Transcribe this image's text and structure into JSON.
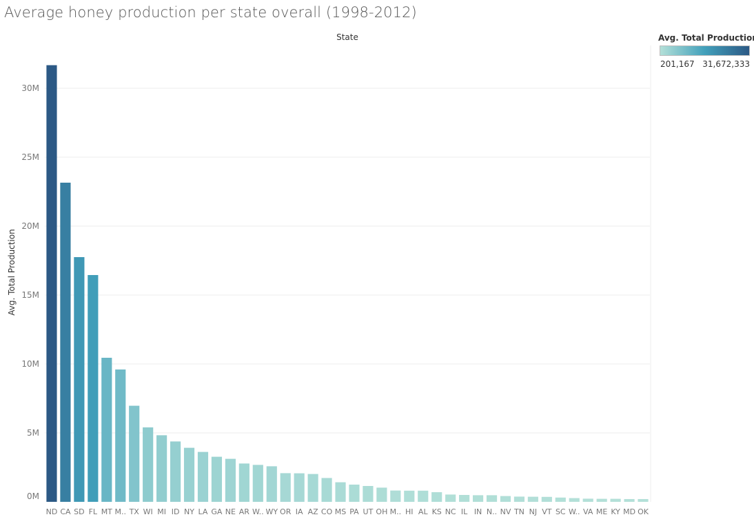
{
  "chart_data": {
    "type": "bar",
    "title": "Average honey production per state overall (1998-2012)",
    "xlabel": "State",
    "ylabel": "Avg. Total Production",
    "ylim": [
      0,
      32000000
    ],
    "yticks": [
      0,
      5000000,
      10000000,
      15000000,
      20000000,
      25000000,
      30000000
    ],
    "ytick_labels": [
      "0M",
      "5M",
      "10M",
      "15M",
      "20M",
      "25M",
      "30M"
    ],
    "categories": [
      "ND",
      "CA",
      "SD",
      "FL",
      "MT",
      "M..",
      "TX",
      "WI",
      "MI",
      "ID",
      "NY",
      "LA",
      "GA",
      "NE",
      "AR",
      "W..",
      "WY",
      "OR",
      "IA",
      "AZ",
      "CO",
      "MS",
      "PA",
      "UT",
      "OH",
      "M..",
      "HI",
      "AL",
      "KS",
      "NC",
      "IL",
      "IN",
      "N..",
      "NV",
      "TN",
      "NJ",
      "VT",
      "SC",
      "W..",
      "VA",
      "ME",
      "KY",
      "MD",
      "OK"
    ],
    "values": [
      31672333,
      23150000,
      17750000,
      16450000,
      10450000,
      9600000,
      6970000,
      5400000,
      4830000,
      4380000,
      3920000,
      3620000,
      3270000,
      3120000,
      2780000,
      2680000,
      2580000,
      2080000,
      2070000,
      2020000,
      1730000,
      1420000,
      1250000,
      1150000,
      1030000,
      820000,
      810000,
      810000,
      700000,
      530000,
      500000,
      480000,
      480000,
      420000,
      380000,
      370000,
      360000,
      310000,
      270000,
      230000,
      220000,
      220000,
      201167,
      201167
    ],
    "grid": true,
    "legend": {
      "title": "Avg. Total Production",
      "min_label": "201,167",
      "max_label": "31,672,333",
      "min": 201167,
      "max": 31672333,
      "placement": "top-right"
    },
    "colors": {
      "low": "#b3e0d8",
      "mid": "#42a0bb",
      "high": "#2c5985",
      "grid": "#eeeeee",
      "axis_text": "#777777"
    }
  }
}
